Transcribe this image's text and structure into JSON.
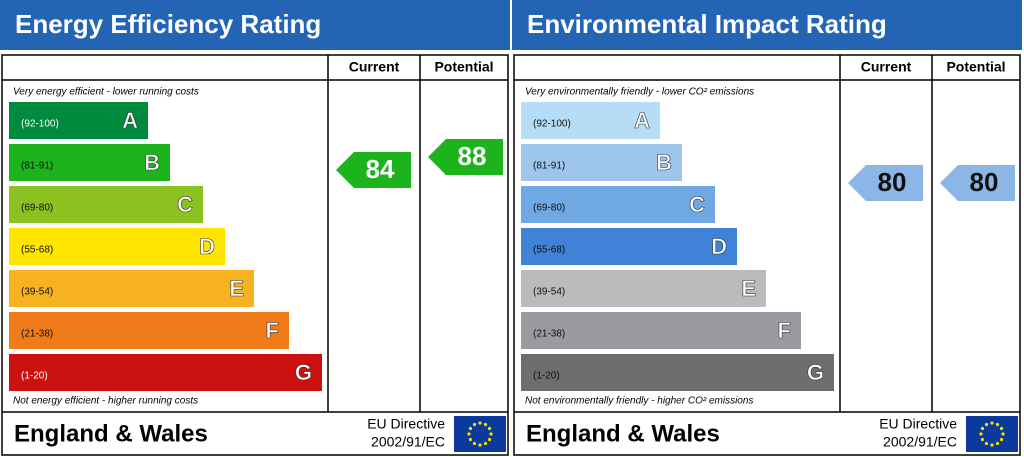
{
  "panels": [
    {
      "title": "Energy Efficiency Rating",
      "col_current": "Current",
      "col_potential": "Potential",
      "top_note": "Very energy efficient - lower running costs",
      "bottom_note": "Not energy efficient - higher running costs",
      "bands": [
        {
          "range": "(92-100)",
          "letter": "A",
          "color": "#008a3e"
        },
        {
          "range": "(81-91)",
          "letter": "B",
          "color": "#1db31d"
        },
        {
          "range": "(69-80)",
          "letter": "C",
          "color": "#8cc21f"
        },
        {
          "range": "(55-68)",
          "letter": "D",
          "color": "#ffe500"
        },
        {
          "range": "(39-54)",
          "letter": "E",
          "color": "#f6b31f"
        },
        {
          "range": "(21-38)",
          "letter": "F",
          "color": "#f07c19"
        },
        {
          "range": "(1-20)",
          "letter": "G",
          "color": "#cc1111"
        }
      ],
      "current": {
        "value": 84,
        "color": "#1db31d"
      },
      "potential": {
        "value": 88,
        "color": "#1db31d"
      },
      "footer": "England & Wales",
      "directive_1": "EU Directive",
      "directive_2": "2002/91/EC"
    },
    {
      "title": "Environmental Impact Rating",
      "col_current": "Current",
      "col_potential": "Potential",
      "top_note": "Very environmentally friendly - lower CO² emissions",
      "bottom_note": "Not environmentally friendly - higher CO² emissions",
      "bands": [
        {
          "range": "(92-100)",
          "letter": "A",
          "color": "#b5def6"
        },
        {
          "range": "(81-91)",
          "letter": "B",
          "color": "#9ec6ec"
        },
        {
          "range": "(69-80)",
          "letter": "C",
          "color": "#6fa8e2"
        },
        {
          "range": "(55-68)",
          "letter": "D",
          "color": "#3f82d8"
        },
        {
          "range": "(39-54)",
          "letter": "E",
          "color": "#bbbbbb"
        },
        {
          "range": "(21-38)",
          "letter": "F",
          "color": "#9c9aa1"
        },
        {
          "range": "(1-20)",
          "letter": "G",
          "color": "#6e6d70"
        }
      ],
      "current": {
        "value": 80,
        "color": "#8cb6e6"
      },
      "potential": {
        "value": 80,
        "color": "#8cb6e6"
      },
      "footer": "England & Wales",
      "directive_1": "EU Directive",
      "directive_2": "2002/91/EC"
    }
  ]
}
